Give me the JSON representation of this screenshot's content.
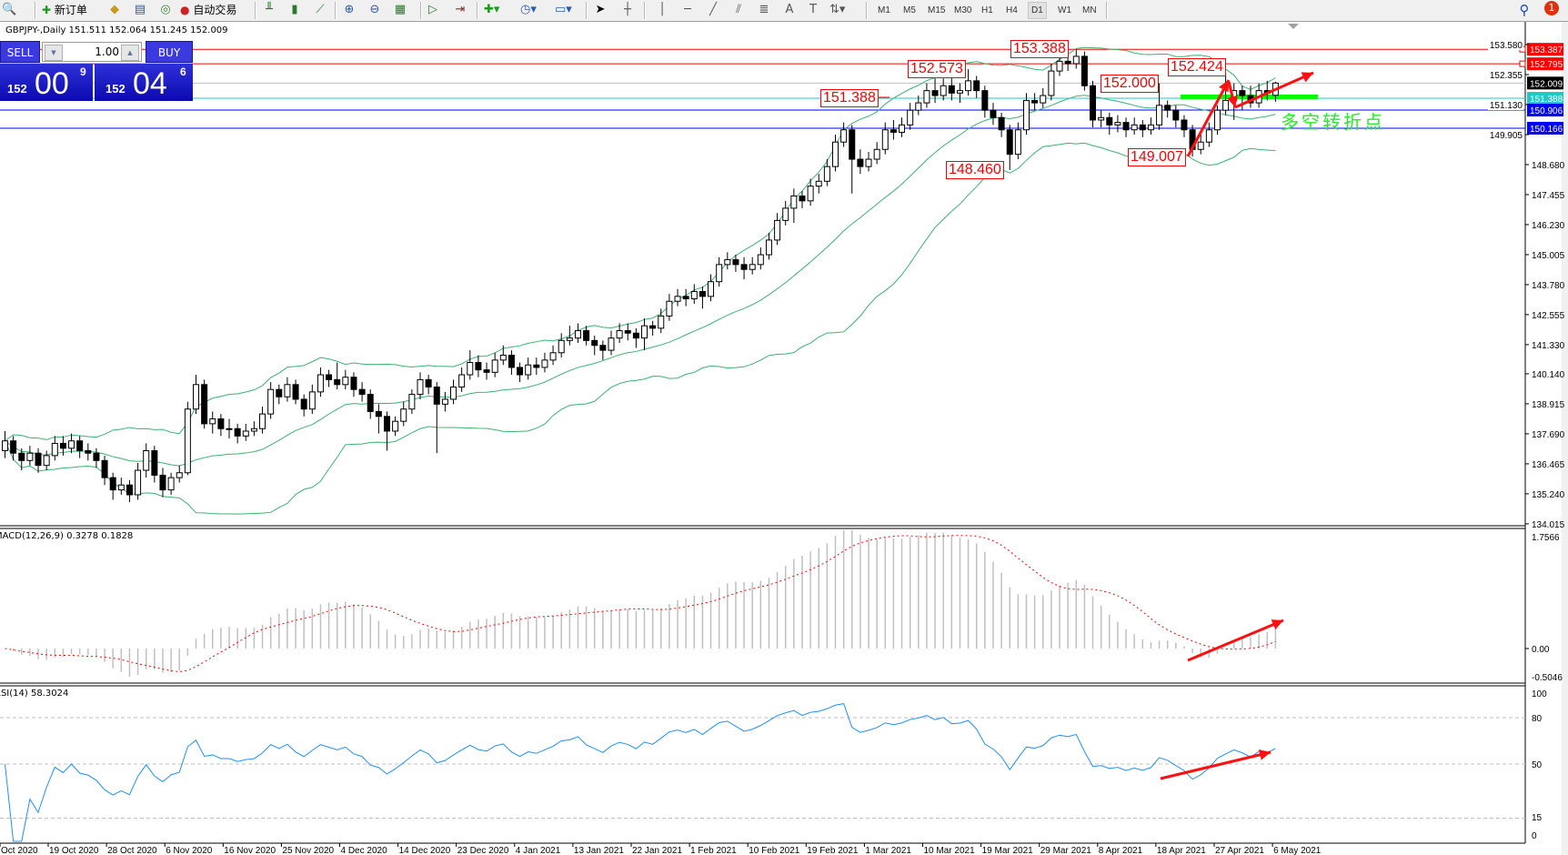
{
  "toolbar": {
    "new_order": "新订单",
    "auto_trading": "自动交易",
    "timeframes": [
      "M1",
      "M5",
      "M15",
      "M30",
      "H1",
      "H4",
      "D1",
      "W1",
      "MN"
    ],
    "active_timeframe": "D1",
    "notification_count": "1",
    "icons": [
      "chart-magnifier-icon",
      "new-order-icon",
      "expert-icon",
      "history-icon",
      "signal-icon",
      "auto-trading-icon",
      "bar-chart-icon",
      "candlestick-icon",
      "line-chart-icon",
      "zoom-in-icon",
      "zoom-out-icon",
      "tile-windows-icon",
      "auto-scroll-icon",
      "chart-shift-icon",
      "indicators-icon",
      "periods-icon",
      "templates-icon",
      "cursor-icon",
      "crosshair-icon",
      "vertical-line-icon",
      "horizontal-line-icon",
      "trendline-icon",
      "equidistant-channel-icon",
      "fibonacci-icon",
      "text-icon",
      "text-label-icon",
      "arrows-icon",
      "search-icon",
      "notification-icon"
    ]
  },
  "chart_info": "GBPJPY-,Daily  151.511 152.064 151.245 152.009",
  "trade_panel": {
    "sell_label": "SELL",
    "buy_label": "BUY",
    "lot": "1.00",
    "bid": {
      "big": "152",
      "mid": "00",
      "small": "9"
    },
    "ask": {
      "big": "152",
      "mid": "04",
      "small": "6"
    }
  },
  "chart_data": [
    {
      "type": "candlestick",
      "symbol": "GBPJPY-",
      "timeframe": "Daily",
      "overlay": "bollinger-bands",
      "y_ticks": [
        "153.580",
        "152.355",
        "151.130",
        "149.905",
        "148.680",
        "147.455",
        "146.230",
        "145.005",
        "143.780",
        "142.555",
        "141.330",
        "140.140",
        "138.915",
        "137.690",
        "136.465",
        "135.240",
        "134.015"
      ],
      "x_ticks": [
        "Oct 2020",
        "19 Oct 2020",
        "28 Oct 2020",
        "6 Nov 2020",
        "16 Nov 2020",
        "25 Nov 2020",
        "4 Dec 2020",
        "14 Dec 2020",
        "23 Dec 2020",
        "4 Jan 2021",
        "13 Jan 2021",
        "22 Jan 2021",
        "1 Feb 2021",
        "10 Feb 2021",
        "19 Feb 2021",
        "1 Mar 2021",
        "10 Mar 2021",
        "19 Mar 2021",
        "29 Mar 2021",
        "8 Apr 2021",
        "18 Apr 2021",
        "27 Apr 2021",
        "6 May 2021"
      ],
      "hlines": [
        {
          "price": "153.387",
          "color": "#ff0000"
        },
        {
          "price": "152.795",
          "color": "#ff0000"
        },
        {
          "price": "152.009",
          "color": "#000000",
          "line": "#c0c0c0"
        },
        {
          "price": "151.388",
          "color": "#20c8c8"
        },
        {
          "price": "150.906",
          "color": "#0000ff"
        },
        {
          "price": "150.166",
          "color": "#0000ff"
        }
      ],
      "price_labels": [
        "153.388",
        "152.573",
        "151.388",
        "152.000",
        "152.424",
        "148.460",
        "149.007"
      ],
      "annotation_text": "多空转折点",
      "annotation_color": "#22ee22",
      "support_line_color": "#00ff00",
      "candles_ohlc": [
        [
          137.0,
          137.8,
          136.7,
          137.4
        ],
        [
          137.4,
          137.6,
          136.6,
          136.9
        ],
        [
          136.9,
          137.1,
          136.2,
          136.6
        ],
        [
          136.6,
          137.2,
          136.4,
          136.9
        ],
        [
          136.9,
          137.1,
          136.1,
          136.4
        ],
        [
          136.4,
          137.0,
          136.2,
          136.8
        ],
        [
          136.8,
          137.6,
          136.6,
          137.3
        ],
        [
          137.3,
          137.6,
          136.8,
          137.1
        ],
        [
          137.1,
          137.7,
          136.9,
          137.4
        ],
        [
          137.4,
          137.6,
          136.7,
          137.0
        ],
        [
          137.0,
          137.3,
          136.6,
          136.9
        ],
        [
          136.9,
          137.1,
          136.3,
          136.6
        ],
        [
          136.6,
          136.8,
          135.6,
          135.9
        ],
        [
          135.9,
          136.1,
          135.0,
          135.4
        ],
        [
          135.4,
          135.9,
          135.2,
          135.6
        ],
        [
          135.6,
          135.8,
          134.9,
          135.2
        ],
        [
          135.2,
          136.5,
          135.0,
          136.2
        ],
        [
          136.2,
          137.3,
          135.9,
          137.0
        ],
        [
          137.0,
          137.2,
          135.7,
          136.0
        ],
        [
          136.0,
          136.3,
          135.1,
          135.4
        ],
        [
          135.4,
          136.1,
          135.2,
          135.9
        ],
        [
          135.9,
          136.4,
          135.7,
          136.1
        ],
        [
          136.1,
          139.0,
          136.0,
          138.7
        ],
        [
          138.7,
          140.1,
          138.5,
          139.7
        ],
        [
          139.7,
          139.9,
          137.9,
          138.1
        ],
        [
          138.1,
          138.6,
          137.7,
          138.3
        ],
        [
          138.3,
          138.5,
          137.6,
          137.9
        ],
        [
          137.9,
          138.3,
          137.5,
          137.9
        ],
        [
          137.9,
          138.1,
          137.3,
          137.6
        ],
        [
          137.6,
          138.1,
          137.4,
          137.8
        ],
        [
          137.8,
          138.2,
          137.6,
          137.9
        ],
        [
          137.9,
          138.8,
          137.7,
          138.5
        ],
        [
          138.5,
          139.8,
          138.3,
          139.5
        ],
        [
          139.5,
          139.7,
          138.9,
          139.2
        ],
        [
          139.2,
          140.0,
          139.0,
          139.7
        ],
        [
          139.7,
          139.9,
          138.9,
          139.1
        ],
        [
          139.1,
          139.3,
          138.4,
          138.7
        ],
        [
          138.7,
          139.7,
          138.5,
          139.4
        ],
        [
          139.4,
          140.4,
          139.2,
          140.1
        ],
        [
          140.1,
          140.3,
          139.6,
          139.9
        ],
        [
          139.9,
          140.6,
          139.5,
          139.7
        ],
        [
          139.7,
          140.3,
          139.5,
          140.0
        ],
        [
          140.0,
          140.2,
          139.2,
          139.5
        ],
        [
          139.5,
          139.8,
          139.0,
          139.3
        ],
        [
          139.3,
          139.5,
          138.3,
          138.6
        ],
        [
          138.6,
          138.9,
          137.7,
          138.4
        ],
        [
          138.4,
          138.6,
          137.0,
          137.8
        ],
        [
          137.8,
          138.4,
          137.6,
          138.2
        ],
        [
          138.2,
          139.0,
          138.0,
          138.7
        ],
        [
          138.7,
          139.5,
          138.5,
          139.3
        ],
        [
          139.3,
          140.2,
          139.1,
          139.9
        ],
        [
          139.9,
          140.1,
          139.3,
          139.6
        ],
        [
          139.6,
          139.8,
          136.9,
          138.9
        ],
        [
          138.9,
          139.4,
          138.6,
          139.1
        ],
        [
          139.1,
          139.9,
          138.9,
          139.6
        ],
        [
          139.6,
          140.4,
          139.4,
          140.1
        ],
        [
          140.1,
          141.1,
          139.9,
          140.6
        ],
        [
          140.6,
          140.9,
          140.0,
          140.3
        ],
        [
          140.3,
          140.6,
          139.9,
          140.2
        ],
        [
          140.2,
          141.0,
          140.0,
          140.7
        ],
        [
          140.7,
          141.3,
          140.5,
          140.9
        ],
        [
          140.9,
          141.1,
          140.1,
          140.4
        ],
        [
          140.4,
          140.6,
          139.8,
          140.1
        ],
        [
          140.1,
          140.8,
          139.9,
          140.5
        ],
        [
          140.5,
          140.8,
          140.1,
          140.4
        ],
        [
          140.4,
          141.0,
          140.2,
          140.7
        ],
        [
          140.7,
          141.3,
          140.5,
          141.0
        ],
        [
          141.0,
          141.8,
          140.8,
          141.5
        ],
        [
          141.5,
          142.1,
          141.3,
          141.6
        ],
        [
          141.6,
          142.2,
          141.4,
          141.9
        ],
        [
          141.9,
          142.1,
          141.3,
          141.5
        ],
        [
          141.5,
          141.7,
          140.9,
          141.3
        ],
        [
          141.3,
          141.5,
          140.7,
          141.1
        ],
        [
          141.1,
          141.9,
          140.9,
          141.6
        ],
        [
          141.6,
          142.2,
          141.4,
          141.9
        ],
        [
          141.9,
          142.2,
          141.5,
          141.8
        ],
        [
          141.8,
          142.0,
          141.2,
          141.6
        ],
        [
          141.6,
          142.4,
          141.1,
          142.1
        ],
        [
          142.1,
          142.3,
          141.7,
          142.0
        ],
        [
          142.0,
          142.8,
          141.8,
          142.5
        ],
        [
          142.5,
          143.4,
          142.3,
          143.1
        ],
        [
          143.1,
          143.6,
          142.9,
          143.3
        ],
        [
          143.3,
          143.6,
          142.9,
          143.2
        ],
        [
          143.2,
          143.8,
          143.0,
          143.5
        ],
        [
          143.5,
          143.7,
          142.8,
          143.3
        ],
        [
          143.3,
          144.2,
          143.1,
          143.9
        ],
        [
          143.9,
          144.9,
          143.7,
          144.6
        ],
        [
          144.6,
          145.1,
          144.4,
          144.8
        ],
        [
          144.8,
          145.0,
          144.3,
          144.6
        ],
        [
          144.6,
          144.9,
          144.0,
          144.4
        ],
        [
          144.4,
          144.9,
          144.2,
          144.6
        ],
        [
          144.6,
          145.3,
          144.4,
          145.0
        ],
        [
          145.0,
          145.9,
          144.8,
          145.6
        ],
        [
          145.6,
          146.7,
          145.4,
          146.4
        ],
        [
          146.4,
          147.2,
          146.2,
          146.9
        ],
        [
          146.9,
          147.7,
          146.3,
          147.4
        ],
        [
          147.4,
          147.6,
          146.9,
          147.2
        ],
        [
          147.2,
          148.1,
          147.0,
          147.8
        ],
        [
          147.8,
          148.3,
          147.5,
          148.0
        ],
        [
          148.0,
          148.9,
          147.8,
          148.6
        ],
        [
          148.6,
          149.9,
          148.4,
          149.6
        ],
        [
          149.6,
          150.4,
          149.4,
          150.1
        ],
        [
          150.1,
          150.3,
          147.5,
          148.9
        ],
        [
          148.9,
          149.3,
          148.3,
          148.6
        ],
        [
          148.6,
          149.2,
          148.4,
          148.9
        ],
        [
          148.9,
          149.6,
          148.7,
          149.3
        ],
        [
          149.3,
          150.4,
          149.1,
          150.1
        ],
        [
          150.1,
          150.5,
          149.7,
          150.0
        ],
        [
          150.0,
          150.6,
          149.8,
          150.3
        ],
        [
          150.3,
          151.2,
          150.1,
          150.9
        ],
        [
          150.9,
          151.5,
          150.7,
          151.2
        ],
        [
          151.2,
          152.0,
          151.0,
          151.7
        ],
        [
          151.7,
          152.2,
          151.2,
          151.5
        ],
        [
          151.5,
          152.2,
          151.3,
          151.9
        ],
        [
          151.9,
          152.2,
          151.3,
          151.6
        ],
        [
          151.6,
          152.0,
          151.2,
          151.7
        ],
        [
          151.7,
          152.573,
          151.5,
          152.1
        ],
        [
          152.1,
          152.3,
          151.4,
          151.7
        ],
        [
          151.7,
          151.9,
          150.6,
          150.9
        ],
        [
          150.9,
          151.2,
          150.3,
          150.6
        ],
        [
          150.6,
          150.8,
          149.8,
          150.1
        ],
        [
          150.1,
          150.3,
          148.46,
          149.1
        ],
        [
          149.1,
          150.4,
          148.9,
          150.1
        ],
        [
          150.1,
          151.6,
          149.9,
          151.3
        ],
        [
          151.3,
          151.6,
          150.9,
          151.2
        ],
        [
          151.2,
          151.8,
          151.0,
          151.5
        ],
        [
          151.5,
          152.8,
          151.3,
          152.5
        ],
        [
          152.5,
          153.2,
          152.3,
          152.9
        ],
        [
          152.9,
          153.1,
          152.5,
          152.8
        ],
        [
          152.8,
          153.388,
          152.6,
          153.1
        ],
        [
          153.1,
          153.3,
          151.7,
          151.9
        ],
        [
          151.9,
          152.1,
          150.2,
          150.5
        ],
        [
          150.5,
          150.9,
          150.2,
          150.6
        ],
        [
          150.6,
          150.8,
          149.9,
          150.3
        ],
        [
          150.3,
          150.7,
          150.0,
          150.4
        ],
        [
          150.4,
          150.6,
          149.8,
          150.1
        ],
        [
          150.1,
          150.6,
          149.9,
          150.3
        ],
        [
          150.3,
          150.5,
          149.8,
          150.1
        ],
        [
          150.1,
          150.6,
          149.9,
          150.3
        ],
        [
          150.3,
          152.0,
          150.1,
          151.1
        ],
        [
          151.1,
          151.3,
          150.6,
          150.9
        ],
        [
          150.9,
          151.1,
          150.2,
          150.5
        ],
        [
          150.5,
          150.7,
          149.8,
          150.1
        ],
        [
          150.1,
          150.3,
          149.007,
          149.3
        ],
        [
          149.3,
          149.9,
          149.1,
          149.6
        ],
        [
          149.6,
          150.4,
          149.4,
          150.1
        ],
        [
          150.1,
          151.1,
          149.9,
          150.9
        ],
        [
          150.9,
          152.424,
          150.7,
          151.3
        ],
        [
          151.3,
          152.0,
          150.5,
          151.7
        ],
        [
          151.7,
          151.9,
          150.9,
          151.5
        ],
        [
          151.5,
          151.9,
          151.0,
          151.2
        ],
        [
          151.2,
          152.0,
          151.0,
          151.7
        ],
        [
          151.7,
          152.1,
          151.3,
          151.6
        ],
        [
          151.511,
          152.064,
          151.245,
          152.009
        ]
      ]
    },
    {
      "type": "bar",
      "indicator": "MACD",
      "label": "MACD(12,26,9) 0.3278 0.1828",
      "y_ticks": [
        "1.7566",
        "0.00",
        "-0.5046"
      ],
      "ylim": [
        -0.5046,
        1.7566
      ],
      "histogram_color": "#c0c0c0",
      "signal_color": "#ff0000"
    },
    {
      "type": "line",
      "indicator": "RSI",
      "label": "RSI(14) 58.3024",
      "y_ticks": [
        "100",
        "80",
        "50",
        "15",
        "0"
      ],
      "levels": [
        80,
        50,
        15
      ],
      "ylim": [
        0,
        100
      ],
      "line_color": "#1e90ff"
    }
  ]
}
